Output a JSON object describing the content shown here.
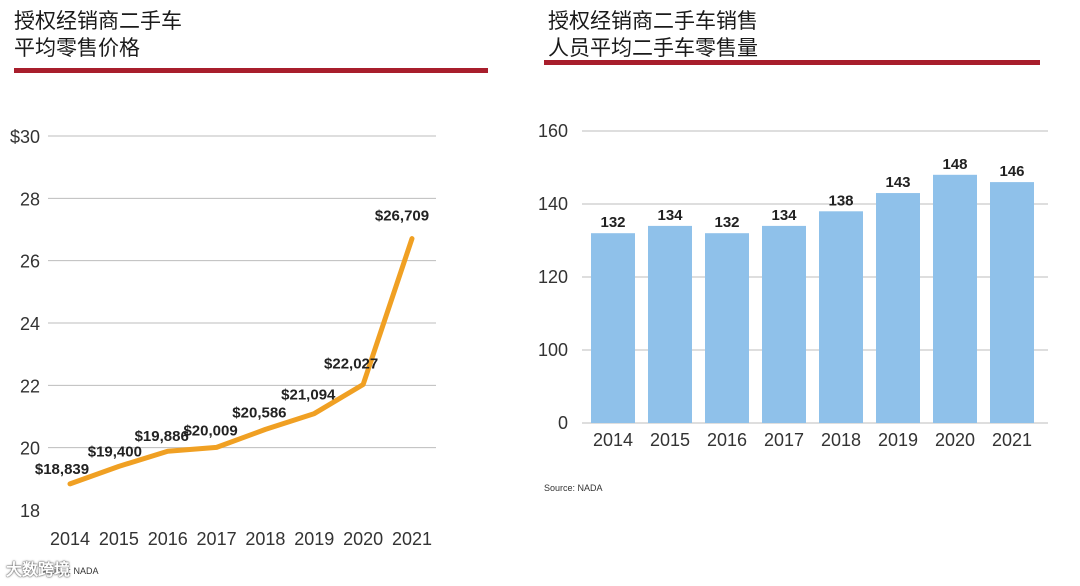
{
  "chart_data": [
    {
      "type": "line",
      "title": [
        "授权经销商二手车",
        "平均零售价格"
      ],
      "x": [
        "2014",
        "2015",
        "2016",
        "2017",
        "2018",
        "2019",
        "2020",
        "2021"
      ],
      "series": [
        {
          "values": [
            18839,
            19400,
            19886,
            20009,
            20586,
            21094,
            22027,
            26709
          ],
          "labels": [
            "$18,839",
            "$19,400",
            "$19,886",
            "$20,009",
            "$20,586",
            "$21,094",
            "$22,027",
            "$26,709"
          ]
        }
      ],
      "ylim": [
        18000,
        30000
      ],
      "yticks": [
        "18",
        "20",
        "22",
        "24",
        "26",
        "28",
        "$30"
      ],
      "grid": true,
      "line_color": "#f0a023",
      "source": "Source: NADA"
    },
    {
      "type": "bar",
      "title": [
        "授权经销商二手车销售",
        "人员平均二手车零售量"
      ],
      "categories": [
        "2014",
        "2015",
        "2016",
        "2017",
        "2018",
        "2019",
        "2020",
        "2021"
      ],
      "values": [
        132,
        134,
        132,
        134,
        138,
        143,
        148,
        146
      ],
      "labels": [
        "132",
        "134",
        "132",
        "134",
        "138",
        "143",
        "148",
        "146"
      ],
      "ylim": [
        0,
        160
      ],
      "yticks": [
        "0",
        "100",
        "120",
        "140",
        "160"
      ],
      "grid": true,
      "bar_color": "#8fc1ea",
      "source": "Source: NADA"
    }
  ],
  "watermark": {
    "brand": "大数跨境"
  },
  "colors": {
    "rule": "#a81e2c",
    "grid": "#bdbdbd"
  }
}
